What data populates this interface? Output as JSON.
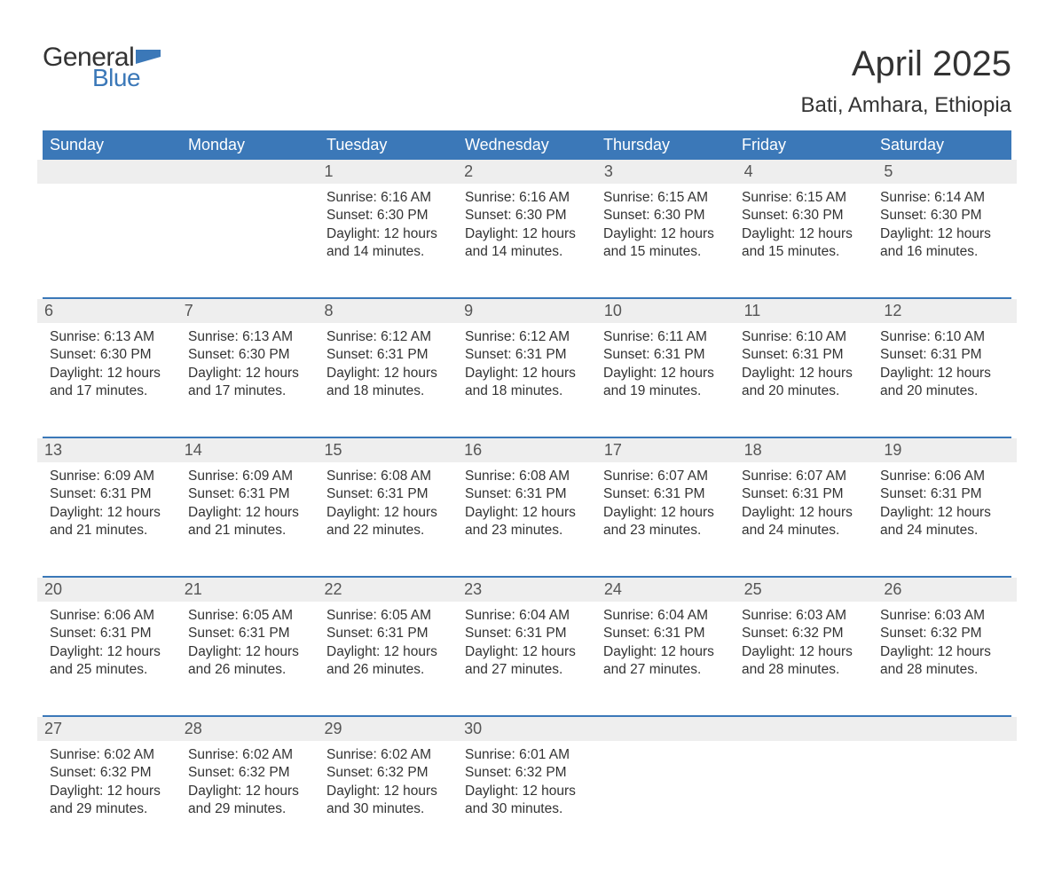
{
  "logo": {
    "word1": "General",
    "word2": "Blue"
  },
  "title": "April 2025",
  "location": "Bati, Amhara, Ethiopia",
  "colors": {
    "brand_blue": "#3b78b8",
    "header_text": "#ffffff",
    "daynum_bg": "#eeeeee",
    "body_text": "#333333",
    "daynum_text": "#555555",
    "background": "#ffffff"
  },
  "typography": {
    "title_fontsize": 40,
    "location_fontsize": 24,
    "dayheader_fontsize": 18,
    "daynum_fontsize": 18,
    "content_fontsize": 15.5,
    "font_family": "Arial"
  },
  "day_headers": [
    "Sunday",
    "Monday",
    "Tuesday",
    "Wednesday",
    "Thursday",
    "Friday",
    "Saturday"
  ],
  "weeks": [
    [
      {
        "num": "",
        "sunrise": "",
        "sunset": "",
        "daylight": ""
      },
      {
        "num": "",
        "sunrise": "",
        "sunset": "",
        "daylight": ""
      },
      {
        "num": "1",
        "sunrise": "Sunrise: 6:16 AM",
        "sunset": "Sunset: 6:30 PM",
        "daylight": "Daylight: 12 hours and 14 minutes."
      },
      {
        "num": "2",
        "sunrise": "Sunrise: 6:16 AM",
        "sunset": "Sunset: 6:30 PM",
        "daylight": "Daylight: 12 hours and 14 minutes."
      },
      {
        "num": "3",
        "sunrise": "Sunrise: 6:15 AM",
        "sunset": "Sunset: 6:30 PM",
        "daylight": "Daylight: 12 hours and 15 minutes."
      },
      {
        "num": "4",
        "sunrise": "Sunrise: 6:15 AM",
        "sunset": "Sunset: 6:30 PM",
        "daylight": "Daylight: 12 hours and 15 minutes."
      },
      {
        "num": "5",
        "sunrise": "Sunrise: 6:14 AM",
        "sunset": "Sunset: 6:30 PM",
        "daylight": "Daylight: 12 hours and 16 minutes."
      }
    ],
    [
      {
        "num": "6",
        "sunrise": "Sunrise: 6:13 AM",
        "sunset": "Sunset: 6:30 PM",
        "daylight": "Daylight: 12 hours and 17 minutes."
      },
      {
        "num": "7",
        "sunrise": "Sunrise: 6:13 AM",
        "sunset": "Sunset: 6:30 PM",
        "daylight": "Daylight: 12 hours and 17 minutes."
      },
      {
        "num": "8",
        "sunrise": "Sunrise: 6:12 AM",
        "sunset": "Sunset: 6:31 PM",
        "daylight": "Daylight: 12 hours and 18 minutes."
      },
      {
        "num": "9",
        "sunrise": "Sunrise: 6:12 AM",
        "sunset": "Sunset: 6:31 PM",
        "daylight": "Daylight: 12 hours and 18 minutes."
      },
      {
        "num": "10",
        "sunrise": "Sunrise: 6:11 AM",
        "sunset": "Sunset: 6:31 PM",
        "daylight": "Daylight: 12 hours and 19 minutes."
      },
      {
        "num": "11",
        "sunrise": "Sunrise: 6:10 AM",
        "sunset": "Sunset: 6:31 PM",
        "daylight": "Daylight: 12 hours and 20 minutes."
      },
      {
        "num": "12",
        "sunrise": "Sunrise: 6:10 AM",
        "sunset": "Sunset: 6:31 PM",
        "daylight": "Daylight: 12 hours and 20 minutes."
      }
    ],
    [
      {
        "num": "13",
        "sunrise": "Sunrise: 6:09 AM",
        "sunset": "Sunset: 6:31 PM",
        "daylight": "Daylight: 12 hours and 21 minutes."
      },
      {
        "num": "14",
        "sunrise": "Sunrise: 6:09 AM",
        "sunset": "Sunset: 6:31 PM",
        "daylight": "Daylight: 12 hours and 21 minutes."
      },
      {
        "num": "15",
        "sunrise": "Sunrise: 6:08 AM",
        "sunset": "Sunset: 6:31 PM",
        "daylight": "Daylight: 12 hours and 22 minutes."
      },
      {
        "num": "16",
        "sunrise": "Sunrise: 6:08 AM",
        "sunset": "Sunset: 6:31 PM",
        "daylight": "Daylight: 12 hours and 23 minutes."
      },
      {
        "num": "17",
        "sunrise": "Sunrise: 6:07 AM",
        "sunset": "Sunset: 6:31 PM",
        "daylight": "Daylight: 12 hours and 23 minutes."
      },
      {
        "num": "18",
        "sunrise": "Sunrise: 6:07 AM",
        "sunset": "Sunset: 6:31 PM",
        "daylight": "Daylight: 12 hours and 24 minutes."
      },
      {
        "num": "19",
        "sunrise": "Sunrise: 6:06 AM",
        "sunset": "Sunset: 6:31 PM",
        "daylight": "Daylight: 12 hours and 24 minutes."
      }
    ],
    [
      {
        "num": "20",
        "sunrise": "Sunrise: 6:06 AM",
        "sunset": "Sunset: 6:31 PM",
        "daylight": "Daylight: 12 hours and 25 minutes."
      },
      {
        "num": "21",
        "sunrise": "Sunrise: 6:05 AM",
        "sunset": "Sunset: 6:31 PM",
        "daylight": "Daylight: 12 hours and 26 minutes."
      },
      {
        "num": "22",
        "sunrise": "Sunrise: 6:05 AM",
        "sunset": "Sunset: 6:31 PM",
        "daylight": "Daylight: 12 hours and 26 minutes."
      },
      {
        "num": "23",
        "sunrise": "Sunrise: 6:04 AM",
        "sunset": "Sunset: 6:31 PM",
        "daylight": "Daylight: 12 hours and 27 minutes."
      },
      {
        "num": "24",
        "sunrise": "Sunrise: 6:04 AM",
        "sunset": "Sunset: 6:31 PM",
        "daylight": "Daylight: 12 hours and 27 minutes."
      },
      {
        "num": "25",
        "sunrise": "Sunrise: 6:03 AM",
        "sunset": "Sunset: 6:32 PM",
        "daylight": "Daylight: 12 hours and 28 minutes."
      },
      {
        "num": "26",
        "sunrise": "Sunrise: 6:03 AM",
        "sunset": "Sunset: 6:32 PM",
        "daylight": "Daylight: 12 hours and 28 minutes."
      }
    ],
    [
      {
        "num": "27",
        "sunrise": "Sunrise: 6:02 AM",
        "sunset": "Sunset: 6:32 PM",
        "daylight": "Daylight: 12 hours and 29 minutes."
      },
      {
        "num": "28",
        "sunrise": "Sunrise: 6:02 AM",
        "sunset": "Sunset: 6:32 PM",
        "daylight": "Daylight: 12 hours and 29 minutes."
      },
      {
        "num": "29",
        "sunrise": "Sunrise: 6:02 AM",
        "sunset": "Sunset: 6:32 PM",
        "daylight": "Daylight: 12 hours and 30 minutes."
      },
      {
        "num": "30",
        "sunrise": "Sunrise: 6:01 AM",
        "sunset": "Sunset: 6:32 PM",
        "daylight": "Daylight: 12 hours and 30 minutes."
      },
      {
        "num": "",
        "sunrise": "",
        "sunset": "",
        "daylight": ""
      },
      {
        "num": "",
        "sunrise": "",
        "sunset": "",
        "daylight": ""
      },
      {
        "num": "",
        "sunrise": "",
        "sunset": "",
        "daylight": ""
      }
    ]
  ]
}
